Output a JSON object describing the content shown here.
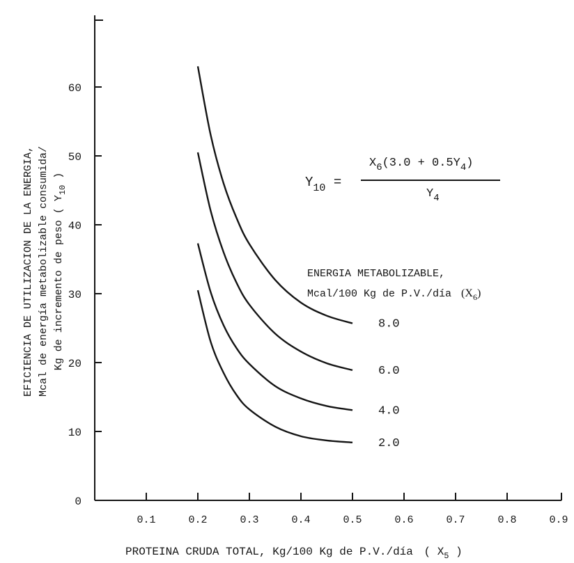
{
  "chart_data": {
    "type": "line",
    "xlabel_main": "PROTEINA CRUDA TOTAL, Kg/100 Kg de P.V./día",
    "xlabel_var": "X",
    "xlabel_sub": "5",
    "ylabel_lines": [
      "EFICIENCIA DE UTILIZACION DE LA ENERGIA,",
      "Mcal de energía metabolizable consumida/",
      "Kg de incremento de peso"
    ],
    "ylabel_var": "Y",
    "ylabel_sub": "10",
    "xlim": [
      0,
      0.9
    ],
    "ylim": [
      0,
      70
    ],
    "x_ticks": [
      "0.1",
      "0.2",
      "0.3",
      "0.4",
      "0.5",
      "0.6",
      "0.7",
      "0.8",
      "0.9"
    ],
    "y_ticks": [
      "0",
      "10",
      "20",
      "30",
      "40",
      "50",
      "60"
    ],
    "formula": {
      "lhs": "Y",
      "lhs_sub": "10",
      "numerator_a": "X",
      "numerator_a_sub": "6",
      "numerator_b": "(3.0 + 0.5Y",
      "numerator_b_sub": "4",
      "numerator_c": ")",
      "denominator": "Y",
      "denominator_sub": "4"
    },
    "legend": {
      "title_line1": "ENERGIA METABOLIZABLE,",
      "title_line2": "Mcal/100 Kg de P.V./día",
      "title_var": "X",
      "title_sub": "6"
    },
    "series": [
      {
        "name": "8.0",
        "x": [
          0.2,
          0.225,
          0.25,
          0.275,
          0.3,
          0.35,
          0.4,
          0.45,
          0.5
        ],
        "y": [
          63,
          53,
          46,
          41,
          37.2,
          32,
          28.7,
          26.8,
          25.7
        ]
      },
      {
        "name": "6.0",
        "x": [
          0.2,
          0.225,
          0.25,
          0.275,
          0.3,
          0.35,
          0.4,
          0.45,
          0.5
        ],
        "y": [
          50.5,
          42,
          36,
          31.6,
          28.4,
          24.2,
          21.6,
          19.9,
          18.9
        ]
      },
      {
        "name": "4.0",
        "x": [
          0.2,
          0.225,
          0.25,
          0.275,
          0.3,
          0.35,
          0.4,
          0.45,
          0.5
        ],
        "y": [
          37.3,
          30.2,
          25.4,
          22.1,
          19.8,
          16.6,
          14.8,
          13.7,
          13.1
        ]
      },
      {
        "name": "2.0",
        "x": [
          0.2,
          0.225,
          0.25,
          0.275,
          0.3,
          0.35,
          0.4,
          0.45,
          0.5
        ],
        "y": [
          30.5,
          23,
          18.5,
          15.3,
          13.2,
          10.7,
          9.3,
          8.7,
          8.4
        ]
      }
    ]
  }
}
